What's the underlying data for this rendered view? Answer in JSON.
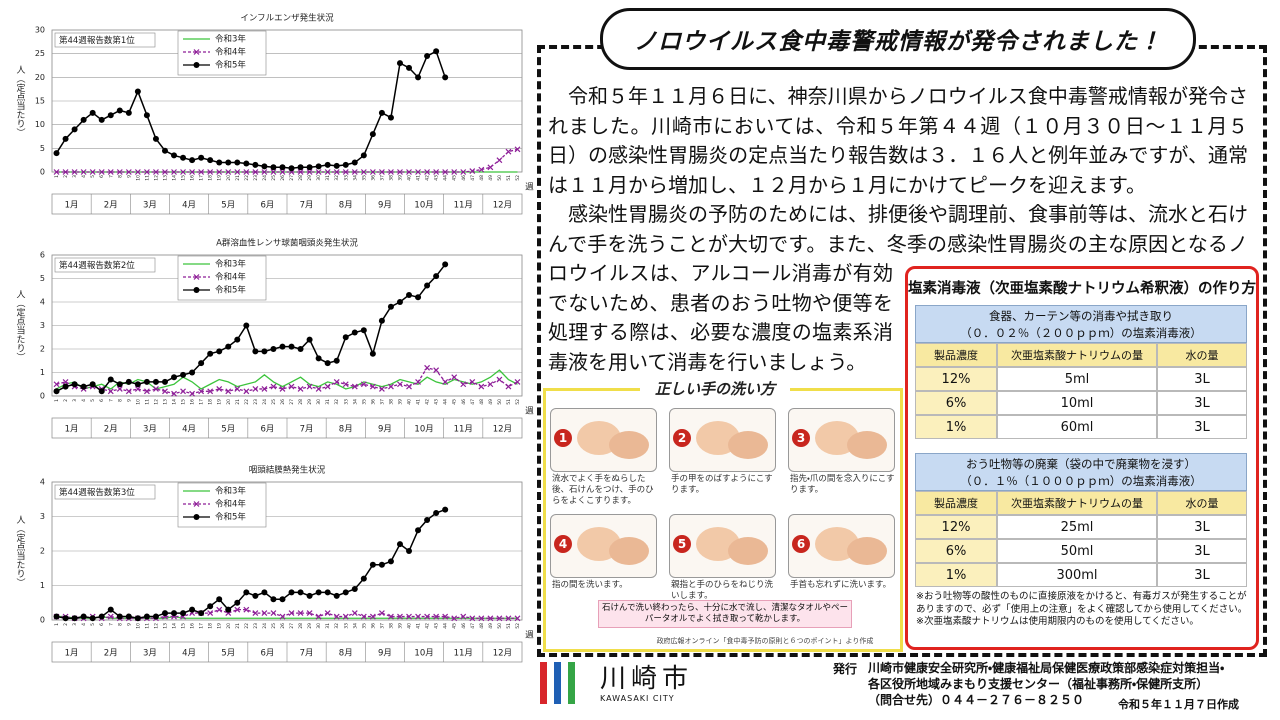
{
  "chart_data": [
    {
      "type": "line",
      "title": "インフルエンザ発生状況",
      "annotation": "第44週報告数第1位",
      "y_label": "人（定点当たり）",
      "x_label": "週",
      "month_labels": [
        "1月",
        "2月",
        "3月",
        "4月",
        "5月",
        "6月",
        "7月",
        "8月",
        "9月",
        "10月",
        "11月",
        "12月"
      ],
      "x": [
        1,
        2,
        3,
        4,
        5,
        6,
        7,
        8,
        9,
        10,
        11,
        12,
        13,
        14,
        15,
        16,
        17,
        18,
        19,
        20,
        21,
        22,
        23,
        24,
        25,
        26,
        27,
        28,
        29,
        30,
        31,
        32,
        33,
        34,
        35,
        36,
        37,
        38,
        39,
        40,
        41,
        42,
        43,
        44,
        45,
        46,
        47,
        48,
        49,
        50,
        51,
        52
      ],
      "xlim": [
        0.5,
        52.5
      ],
      "ylim": [
        0,
        30
      ],
      "yticks": [
        0,
        5,
        10,
        15,
        20,
        25,
        30
      ],
      "grid": true,
      "legend": "upper-left",
      "series": [
        {
          "name": "令和3年",
          "color": "#3cc43c",
          "line_style": "solid",
          "marker": "none",
          "values": [
            0,
            0,
            0,
            0,
            0,
            0,
            0,
            0,
            0,
            0,
            0,
            0,
            0,
            0,
            0,
            0,
            0,
            0,
            0,
            0,
            0,
            0,
            0,
            0,
            0,
            0,
            0,
            0,
            0,
            0,
            0,
            0,
            0,
            0,
            0,
            0,
            0,
            0,
            0,
            0,
            0,
            0,
            0,
            0,
            0,
            0,
            0,
            0,
            0,
            0,
            0,
            0
          ]
        },
        {
          "name": "令和4年",
          "color": "#8e1f98",
          "line_style": "dashed",
          "marker": "x",
          "values": [
            0,
            0,
            0,
            0,
            0,
            0,
            0,
            0,
            0,
            0,
            0,
            0,
            0,
            0,
            0,
            0,
            0,
            0,
            0,
            0,
            0,
            0,
            0,
            0,
            0,
            0,
            0,
            0,
            0,
            0,
            0,
            0,
            0,
            0,
            0,
            0,
            0,
            0,
            0,
            0,
            0,
            0,
            0,
            0,
            0,
            0,
            0.2,
            0.5,
            1,
            2.5,
            4.3,
            4.8
          ]
        },
        {
          "name": "令和5年",
          "color": "#000000",
          "line_style": "solid",
          "marker": "circle",
          "values": [
            4,
            7,
            9,
            11,
            12.5,
            11,
            12,
            13,
            12.5,
            17,
            12,
            7,
            4.5,
            3.5,
            3,
            2.5,
            3,
            2.5,
            2,
            2,
            2,
            1.8,
            1.5,
            1.2,
            1,
            1,
            0.8,
            1,
            1,
            1.2,
            1.5,
            1.3,
            1.5,
            2,
            3.5,
            8,
            12.5,
            11.5,
            23,
            22,
            20,
            24.5,
            25.5,
            20,
            null,
            null,
            null,
            null,
            null,
            null,
            null,
            null
          ]
        }
      ]
    },
    {
      "type": "line",
      "title": "A群溶血性レンサ球菌咽頭炎発生状況",
      "annotation": "第44週報告数第2位",
      "y_label": "人（定点当たり）",
      "x_label": "週",
      "month_labels": [
        "1月",
        "2月",
        "3月",
        "4月",
        "5月",
        "6月",
        "7月",
        "8月",
        "9月",
        "10月",
        "11月",
        "12月"
      ],
      "x": [
        1,
        2,
        3,
        4,
        5,
        6,
        7,
        8,
        9,
        10,
        11,
        12,
        13,
        14,
        15,
        16,
        17,
        18,
        19,
        20,
        21,
        22,
        23,
        24,
        25,
        26,
        27,
        28,
        29,
        30,
        31,
        32,
        33,
        34,
        35,
        36,
        37,
        38,
        39,
        40,
        41,
        42,
        43,
        44,
        45,
        46,
        47,
        48,
        49,
        50,
        51,
        52
      ],
      "xlim": [
        0.5,
        52.5
      ],
      "ylim": [
        0,
        6
      ],
      "yticks": [
        0,
        1,
        2,
        3,
        4,
        5,
        6
      ],
      "grid": true,
      "legend": "upper-left",
      "series": [
        {
          "name": "令和3年",
          "color": "#3cc43c",
          "line_style": "solid",
          "marker": "none",
          "values": [
            0.3,
            0.5,
            0.6,
            0.3,
            0.4,
            0.5,
            0.3,
            0.6,
            0.5,
            0.7,
            0.6,
            0.3,
            0.4,
            0.5,
            0.8,
            0.6,
            0.3,
            0.5,
            0.7,
            0.6,
            0.4,
            0.5,
            0.6,
            0.9,
            0.6,
            0.4,
            0.6,
            0.8,
            0.5,
            0.4,
            0.6,
            0.5,
            0.3,
            0.4,
            0.6,
            0.5,
            0.4,
            0.5,
            0.7,
            0.6,
            0.5,
            0.8,
            0.6,
            0.5,
            0.7,
            0.6,
            0.5,
            0.6,
            0.8,
            1.1,
            0.7,
            0.5
          ]
        },
        {
          "name": "令和4年",
          "color": "#8e1f98",
          "line_style": "dashed",
          "marker": "x",
          "values": [
            0.5,
            0.6,
            0.4,
            0.3,
            0.4,
            0.3,
            0.2,
            0.3,
            0.2,
            0.3,
            0.2,
            0.3,
            0.2,
            0.1,
            0.2,
            0.1,
            0.2,
            0.2,
            0.3,
            0.2,
            0.3,
            0.2,
            0.3,
            0.3,
            0.4,
            0.3,
            0.4,
            0.3,
            0.4,
            0.3,
            0.4,
            0.6,
            0.5,
            0.4,
            0.5,
            0.4,
            0.3,
            0.4,
            0.5,
            0.4,
            0.6,
            1.2,
            1.1,
            0.6,
            0.8,
            0.5,
            0.6,
            0.4,
            0.5,
            0.7,
            0.4,
            0.6
          ]
        },
        {
          "name": "令和5年",
          "color": "#000000",
          "line_style": "solid",
          "marker": "circle",
          "values": [
            0.2,
            0.4,
            0.5,
            0.4,
            0.5,
            0.2,
            0.7,
            0.5,
            0.6,
            0.5,
            0.6,
            0.6,
            0.6,
            0.8,
            0.9,
            1.0,
            1.4,
            1.8,
            1.9,
            2.1,
            2.4,
            3.0,
            1.9,
            1.9,
            2.0,
            2.1,
            2.1,
            2.0,
            2.4,
            1.6,
            1.4,
            1.5,
            2.5,
            2.7,
            2.8,
            1.8,
            3.2,
            3.8,
            4.0,
            4.3,
            4.2,
            4.7,
            5.1,
            5.6,
            null,
            null,
            null,
            null,
            null,
            null,
            null,
            null
          ]
        }
      ]
    },
    {
      "type": "line",
      "title": "咽頭結膜熱発生状況",
      "annotation": "第44週報告数第3位",
      "y_label": "人（定点当たり）",
      "x_label": "週",
      "month_labels": [
        "1月",
        "2月",
        "3月",
        "4月",
        "5月",
        "6月",
        "7月",
        "8月",
        "9月",
        "10月",
        "11月",
        "12月"
      ],
      "x": [
        1,
        2,
        3,
        4,
        5,
        6,
        7,
        8,
        9,
        10,
        11,
        12,
        13,
        14,
        15,
        16,
        17,
        18,
        19,
        20,
        21,
        22,
        23,
        24,
        25,
        26,
        27,
        28,
        29,
        30,
        31,
        32,
        33,
        34,
        35,
        36,
        37,
        38,
        39,
        40,
        41,
        42,
        43,
        44,
        45,
        46,
        47,
        48,
        49,
        50,
        51,
        52
      ],
      "xlim": [
        0.5,
        52.5
      ],
      "ylim": [
        0,
        4
      ],
      "yticks": [
        0,
        1,
        2,
        3,
        4
      ],
      "grid": true,
      "legend": "upper-left",
      "series": [
        {
          "name": "令和3年",
          "color": "#3cc43c",
          "line_style": "solid",
          "marker": "none",
          "values": [
            0.1,
            0.1,
            0.05,
            0.05,
            0.05,
            0.1,
            0.05,
            0.05,
            0.05,
            0.05,
            0.05,
            0.05,
            0.05,
            0.1,
            0.05,
            0.05,
            0.05,
            0.05,
            0.05,
            0.05,
            0.05,
            0.05,
            0.05,
            0.05,
            0.05,
            0.05,
            0.05,
            0.05,
            0.05,
            0.05,
            0.05,
            0.05,
            0.05,
            0.05,
            0.05,
            0.05,
            0.05,
            0.05,
            0.05,
            0.05,
            0.05,
            0.05,
            0.05,
            0.05,
            0.05,
            0.05,
            0.05,
            0.05,
            0.05,
            0.05,
            0.05,
            0.05
          ]
        },
        {
          "name": "令和4年",
          "color": "#8e1f98",
          "line_style": "dashed",
          "marker": "x",
          "values": [
            0.1,
            0.1,
            0.05,
            0.05,
            0.1,
            0.05,
            0.1,
            0.05,
            0.05,
            0.05,
            0.05,
            0.05,
            0.1,
            0.1,
            0.1,
            0.2,
            0.2,
            0.2,
            0.3,
            0.2,
            0.3,
            0.3,
            0.2,
            0.2,
            0.2,
            0.1,
            0.2,
            0.2,
            0.2,
            0.1,
            0.2,
            0.1,
            0.1,
            0.2,
            0.1,
            0.1,
            0.2,
            0.1,
            0.1,
            0.1,
            0.1,
            0.1,
            0.1,
            0.1,
            0.05,
            0.1,
            0.05,
            0.05,
            0.05,
            0.05,
            0.05,
            0.05
          ]
        },
        {
          "name": "令和5年",
          "color": "#000000",
          "line_style": "solid",
          "marker": "circle",
          "values": [
            0.1,
            0.05,
            0.05,
            0.1,
            0.05,
            0.1,
            0.3,
            0.1,
            0.1,
            0.05,
            0.1,
            0.1,
            0.2,
            0.2,
            0.2,
            0.3,
            0.2,
            0.4,
            0.6,
            0.3,
            0.5,
            0.8,
            0.7,
            0.8,
            0.6,
            0.6,
            0.8,
            0.8,
            0.7,
            0.8,
            0.8,
            0.7,
            0.8,
            0.9,
            1.2,
            1.6,
            1.6,
            1.7,
            2.2,
            2.0,
            2.6,
            2.9,
            3.1,
            3.2,
            null,
            null,
            null,
            null,
            null,
            null,
            null,
            null
          ]
        }
      ]
    }
  ],
  "notice": {
    "title": "ノロウイルス食中毒警戒情報が発令されました！",
    "paragraphs": [
      "令和５年１１月６日に、神奈川県からノロウイルス食中毒警戒情報が発令されました。川崎市においては、令和５年第４４週（１０月３０日～１１月５日）の感染性胃腸炎の定点当たり報告数は３．１６人と例年並みですが、通常は１１月から増加し、１２月から１月にかけてピークを迎えます。",
      "感染性胃腸炎の予防のためには、排便後や調理前、食事前等は、流水と石けんで手を洗うことが大切です。また、冬季の感染性胃腸炎の主な原因となるノロウイルスは、アルコール消毒が有効でないため、患者のおう吐物や便等を処理する際は、必要な濃度の塩素系消毒液を用いて消毒を行いましょう。"
    ]
  },
  "hand_washing": {
    "title": "正しい手の洗い方",
    "steps": [
      {
        "number": "1",
        "text": "流水でよく手をぬらした後、石けんをつけ、手のひらをよくこすります。"
      },
      {
        "number": "2",
        "text": "手の甲をのばすようにこすります。"
      },
      {
        "number": "3",
        "text": "指先・爪の間を念入りにこすります。"
      },
      {
        "number": "4",
        "text": "指の間を洗います。"
      },
      {
        "number": "5",
        "text": "親指と手のひらをねじり洗いします。"
      },
      {
        "number": "6",
        "text": "手首も忘れずに洗います。"
      }
    ],
    "note": "石けんで洗い終わったら、十分に水で流し、清潔なタオルやペーパータオルでよく拭き取って乾かします。",
    "source": "政府広報オンライン「食中毒予防の原則と６つのポイント」より作成"
  },
  "chlorine_solution": {
    "title": "塩素消毒液（次亜塩素酸ナトリウム希釈液）の作り方",
    "tables": [
      {
        "purpose": "食器、カーテン等の消毒や拭き取り",
        "concentration": "（０．０２％（２００ｐｐｍ）の塩素消毒液）",
        "header": [
          "製品濃度",
          "次亜塩素酸ナトリウムの量",
          "水の量"
        ],
        "rows": [
          [
            "12%",
            "5ml",
            "3L"
          ],
          [
            "6%",
            "10ml",
            "3L"
          ],
          [
            "1%",
            "60ml",
            "3L"
          ]
        ]
      },
      {
        "purpose": "おう吐物等の廃棄（袋の中で廃棄物を浸す）",
        "concentration": "（０．１％（１０００ｐｐｍ）の塩素消毒液）",
        "header": [
          "製品濃度",
          "次亜塩素酸ナトリウムの量",
          "水の量"
        ],
        "rows": [
          [
            "12%",
            "25ml",
            "3L"
          ],
          [
            "6%",
            "50ml",
            "3L"
          ],
          [
            "1%",
            "300ml",
            "3L"
          ]
        ]
      }
    ],
    "notes": [
      "※おう吐物等の酸性のものに直接原液をかけると、有毒ガスが発生することがありますので、必ず「使用上の注意」をよく確認してから使用してください。",
      "※次亜塩素酸ナトリウムは使用期限内のものを使用してください。"
    ]
  },
  "footer": {
    "logo_text": "川崎市",
    "logo_subtext": "KAWASAKI CITY",
    "publisher_label": "発行",
    "publisher_lines": [
      "川崎市健康安全研究所・健康福祉局保健医療政策部感染症対策担当・",
      "各区役所地域みまもり支援センター（福祉事務所・保健所支所）",
      "（問合せ先）０４４－２７６－８２５０"
    ],
    "date": "令和５年１１月７日作成"
  }
}
